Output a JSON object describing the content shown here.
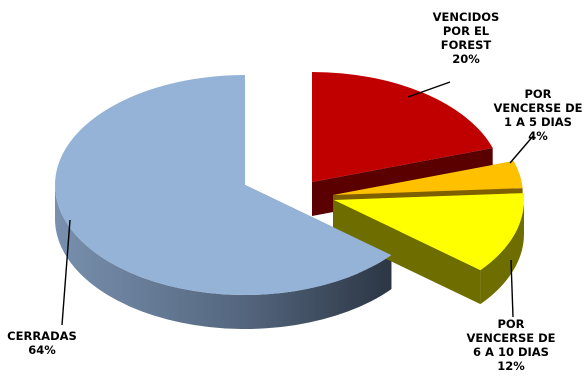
{
  "chart_data": {
    "type": "pie",
    "title": "",
    "slices": [
      {
        "name": "VENCIDOS POR EL FOREST",
        "value": 20,
        "percent_label": "20%",
        "label_lines": [
          "VENCIDOS",
          "POR EL",
          "FOREST",
          "20%"
        ],
        "color": "#C00000",
        "side_color": "#5A0000"
      },
      {
        "name": "POR VENCERSE DE 1 A 5 DIAS",
        "value": 4,
        "percent_label": "4%",
        "label_lines": [
          "POR",
          "VENCERSE DE",
          "1 A 5 DIAS",
          "4%"
        ],
        "color": "#FFC000",
        "side_color": "#7F6000"
      },
      {
        "name": "POR VENCERSE DE 6 A 10 DIAS",
        "value": 12,
        "percent_label": "12%",
        "label_lines": [
          "POR",
          "VENCERSE DE",
          "6 A 10 DIAS",
          "12%"
        ],
        "color": "#FFFF00",
        "side_color": "#6E6E00"
      },
      {
        "name": "CERRADAS",
        "value": 64,
        "percent_label": "64%",
        "label_lines": [
          "CERRADAS",
          "64%"
        ],
        "color": "#95B3D7",
        "side_color": "#3C4A5C"
      }
    ],
    "style": "3d-exploded"
  }
}
